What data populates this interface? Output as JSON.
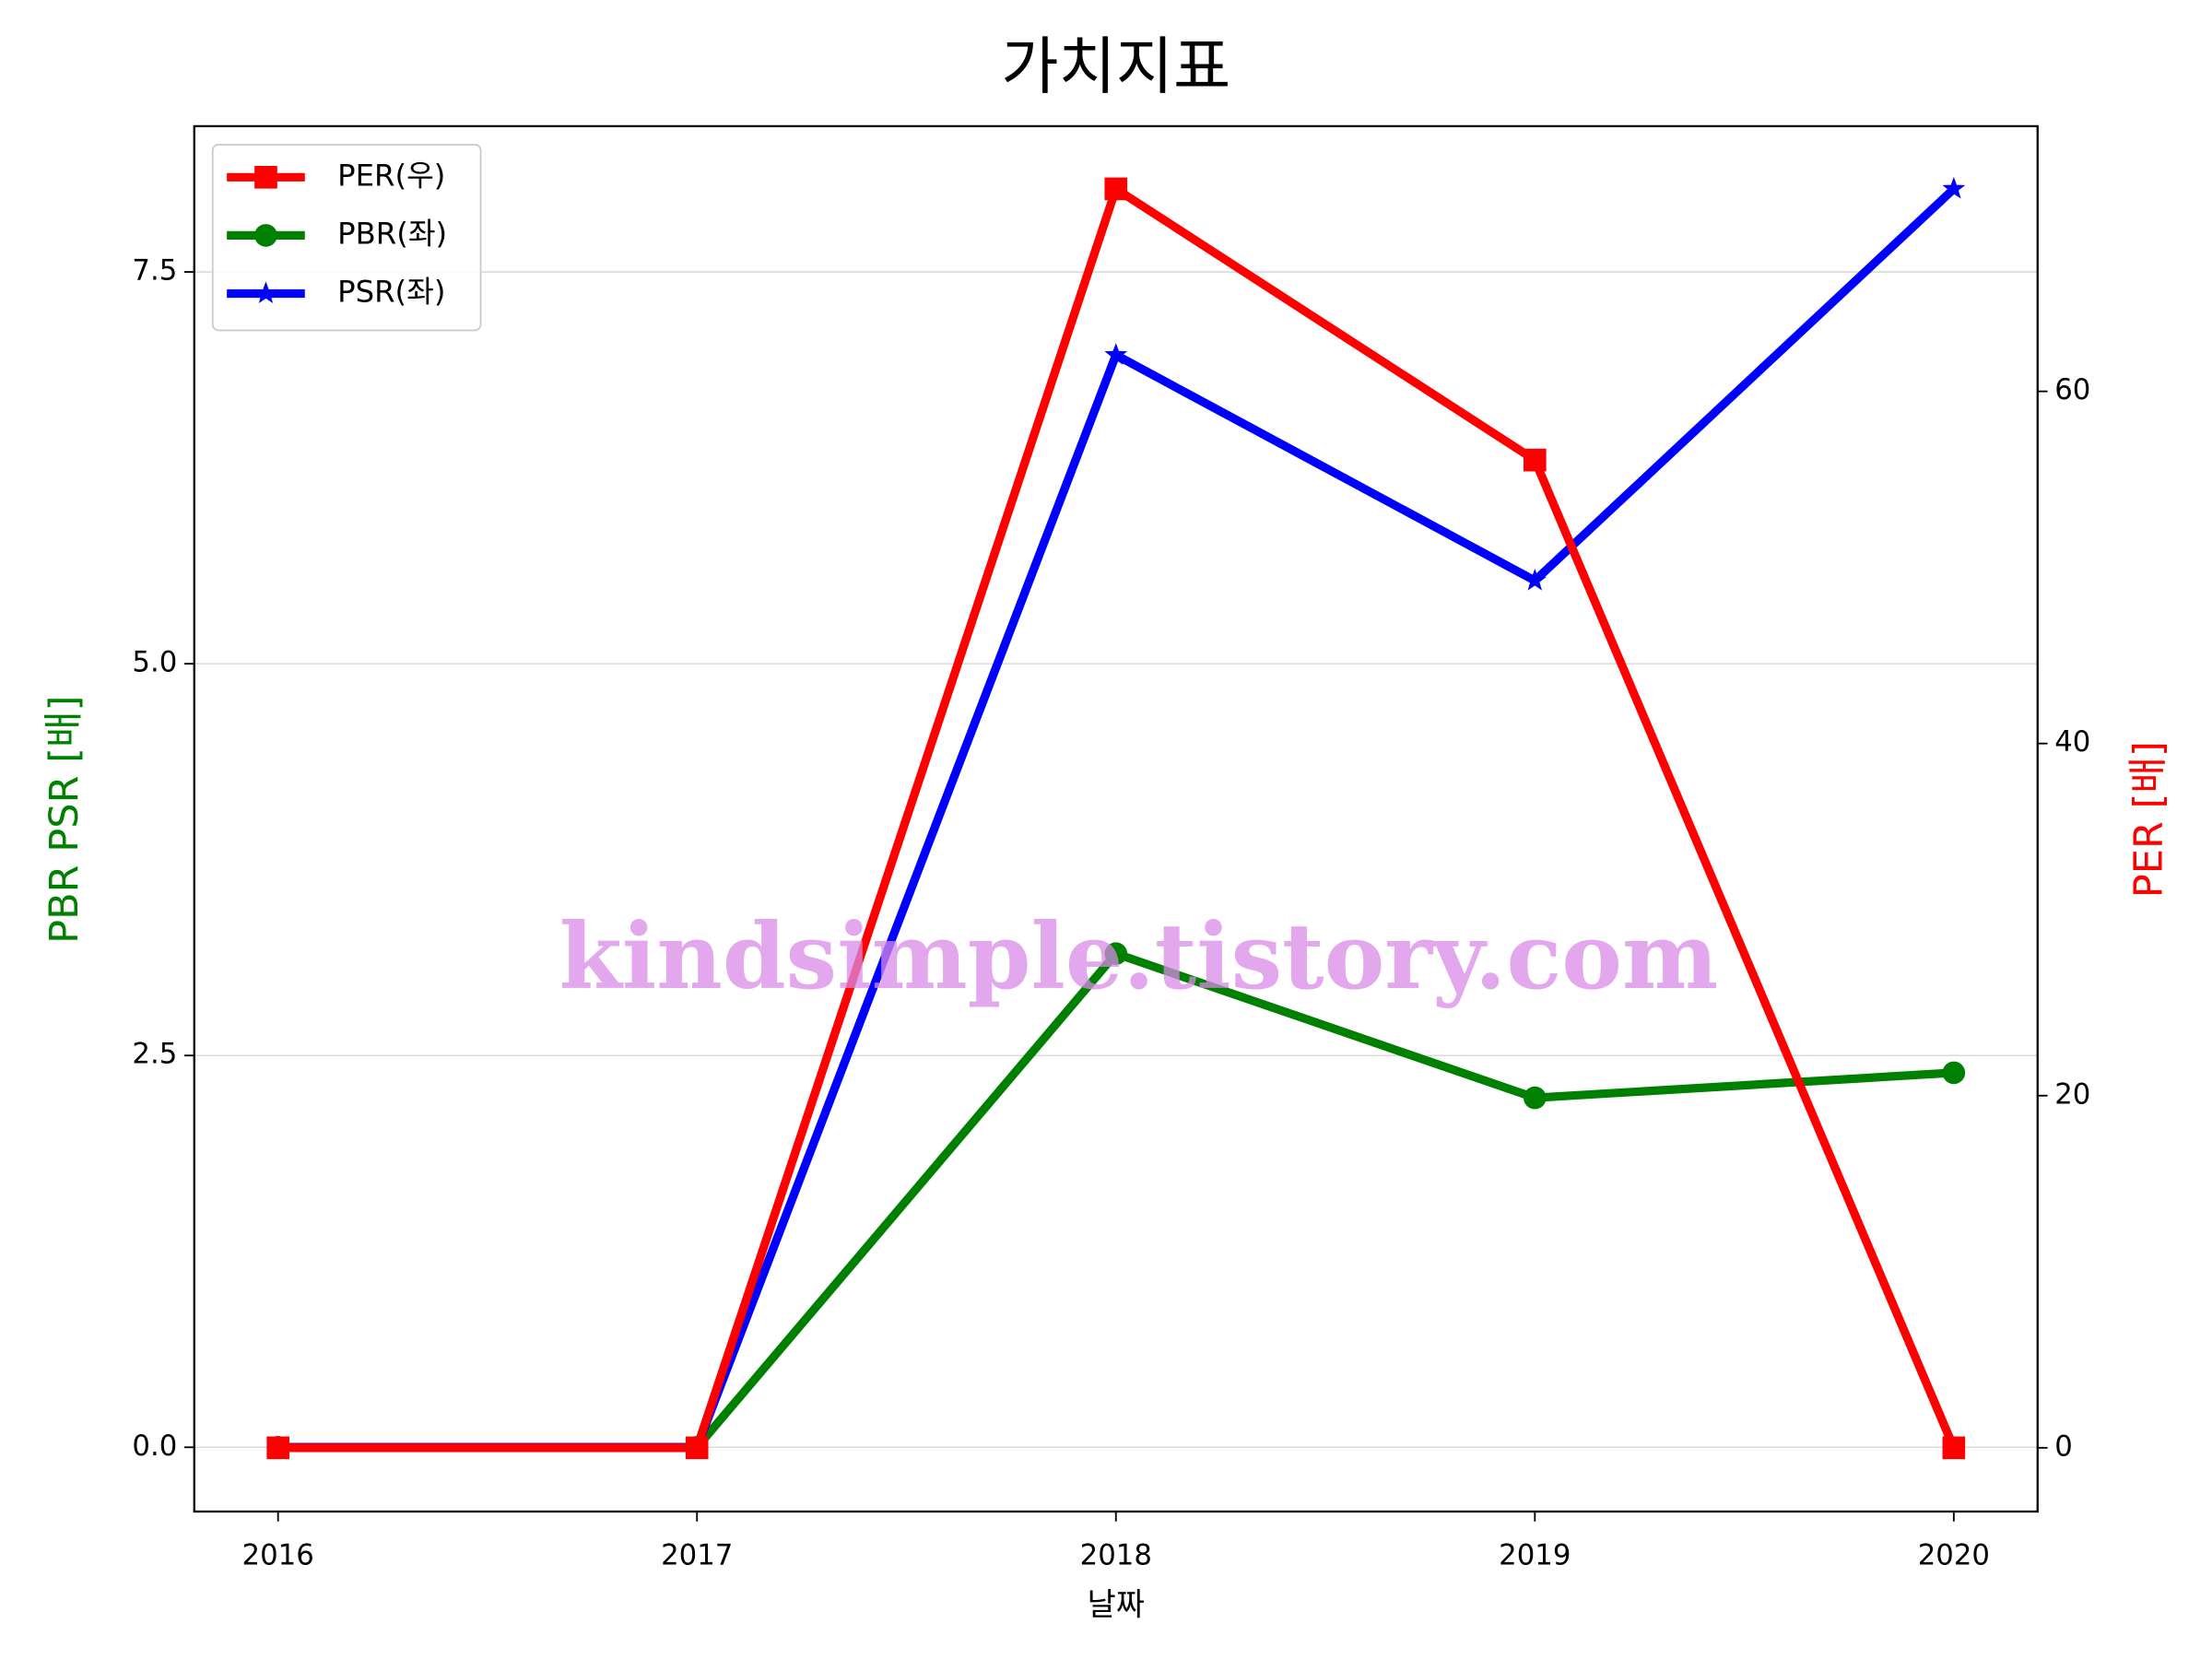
{
  "chart_data": {
    "type": "line",
    "title": "가치지표",
    "xlabel": "날짜",
    "ylabel": "PBR PSR [배]",
    "y2label": "PER [배]",
    "watermark": "kindsimple.tistory.com",
    "x": [
      2016,
      2017,
      2018,
      2019,
      2020
    ],
    "xlim": [
      2015.8,
      2020.2
    ],
    "xticks": [
      2016,
      2017,
      2018,
      2019,
      2020
    ],
    "ylim": [
      -0.41,
      8.43
    ],
    "yticks": [
      {
        "value": 0,
        "label": "0.0"
      },
      {
        "value": 2.5,
        "label": "2.5"
      },
      {
        "value": 5,
        "label": "5.0"
      },
      {
        "value": 7.5,
        "label": "7.5"
      }
    ],
    "y2lim": [
      -3.62,
      75.06
    ],
    "y2ticks": [
      0,
      20,
      40,
      60
    ],
    "grid": true,
    "legend": "upper left",
    "series": [
      {
        "name": "PER(우)",
        "color": "#ff0000",
        "marker": "square",
        "axis": "y2",
        "values": [
          0,
          0,
          71.5,
          56.1,
          0
        ]
      },
      {
        "name": "PBR(좌)",
        "color": "#008000",
        "marker": "circle",
        "values": [
          0,
          0,
          3.15,
          2.23,
          2.39
        ]
      },
      {
        "name": "PSR(좌)",
        "color": "#0000ff",
        "marker": "star",
        "values": [
          0,
          0,
          6.97,
          5.53,
          8.03
        ]
      }
    ]
  }
}
